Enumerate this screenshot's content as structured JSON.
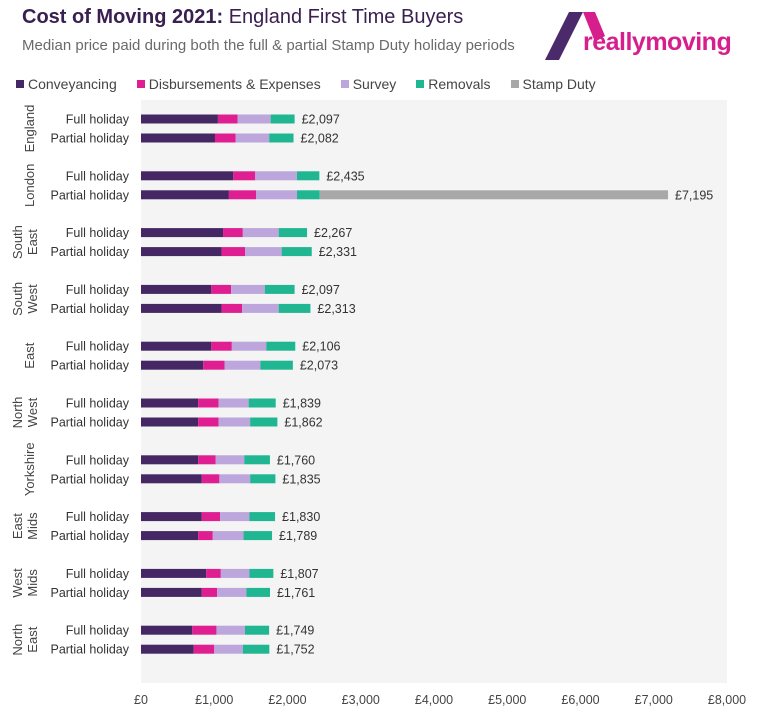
{
  "header": {
    "title_bold": "Cost of Moving 2021:",
    "title_rest": " England First Time Buyers",
    "subtitle": "Median price paid during both the full & partial Stamp Duty holiday periods"
  },
  "logo": {
    "text": "reallymoving",
    "color": "#d61f8c",
    "mark_color": "#4a2a6b"
  },
  "chart_data": {
    "type": "bar",
    "orientation": "horizontal",
    "stacked": true,
    "xlim": [
      0,
      8000
    ],
    "x_ticks": [
      "£0",
      "£1,000",
      "£2,000",
      "£3,000",
      "£4,000",
      "£5,000",
      "£6,000",
      "£7,000",
      "£8,000"
    ],
    "legend_position": "top-left",
    "series": [
      {
        "name": "Conveyancing",
        "color": "#452764"
      },
      {
        "name": "Disbursements & Expenses",
        "color": "#df1f91"
      },
      {
        "name": "Survey",
        "color": "#bca6dc"
      },
      {
        "name": "Removals",
        "color": "#1fb691"
      },
      {
        "name": "Stamp Duty",
        "color": "#a8a8a8"
      }
    ],
    "groups": [
      {
        "region": "England",
        "rows": [
          {
            "label": "Full holiday",
            "total_label": "£2,097",
            "values": [
              1050,
              270,
              450,
              327,
              0
            ]
          },
          {
            "label": "Partial holiday",
            "total_label": "£2,082",
            "values": [
              1010,
              280,
              460,
              332,
              0
            ]
          }
        ]
      },
      {
        "region": "London",
        "rows": [
          {
            "label": "Full holiday",
            "total_label": "£2,435",
            "values": [
              1260,
              300,
              570,
              305,
              0
            ]
          },
          {
            "label": "Partial holiday",
            "total_label": "£7,195",
            "values": [
              1200,
              370,
              560,
              310,
              4755
            ]
          }
        ]
      },
      {
        "region": "South East",
        "rows": [
          {
            "label": "Full holiday",
            "total_label": "£2,267",
            "values": [
              1120,
              270,
              490,
              387,
              0
            ]
          },
          {
            "label": "Partial holiday",
            "total_label": "£2,331",
            "values": [
              1100,
              320,
              500,
              411,
              0
            ]
          }
        ]
      },
      {
        "region": "South West",
        "rows": [
          {
            "label": "Full holiday",
            "total_label": "£2,097",
            "values": [
              960,
              270,
              460,
              407,
              0
            ]
          },
          {
            "label": "Partial holiday",
            "total_label": "£2,313",
            "values": [
              1100,
              280,
              500,
              433,
              0
            ]
          }
        ]
      },
      {
        "region": "East",
        "rows": [
          {
            "label": "Full holiday",
            "total_label": "£2,106",
            "values": [
              960,
              280,
              470,
              396,
              0
            ]
          },
          {
            "label": "Partial holiday",
            "total_label": "£2,073",
            "values": [
              850,
              290,
              490,
              443,
              0
            ]
          }
        ]
      },
      {
        "region": "North West",
        "rows": [
          {
            "label": "Full holiday",
            "total_label": "£1,839",
            "values": [
              780,
              280,
              410,
              369,
              0
            ]
          },
          {
            "label": "Partial holiday",
            "total_label": "£1,862",
            "values": [
              780,
              280,
              430,
              372,
              0
            ]
          }
        ]
      },
      {
        "region": "Yorkshire",
        "rows": [
          {
            "label": "Full holiday",
            "total_label": "£1,760",
            "values": [
              780,
              240,
              390,
              350,
              0
            ]
          },
          {
            "label": "Partial holiday",
            "total_label": "£1,835",
            "values": [
              830,
              240,
              420,
              345,
              0
            ]
          }
        ]
      },
      {
        "region": "East Mids",
        "rows": [
          {
            "label": "Full holiday",
            "total_label": "£1,830",
            "values": [
              830,
              250,
              400,
              350,
              0
            ]
          },
          {
            "label": "Partial holiday",
            "total_label": "£1,789",
            "values": [
              780,
              200,
              420,
              389,
              0
            ]
          }
        ]
      },
      {
        "region": "West Mids",
        "rows": [
          {
            "label": "Full holiday",
            "total_label": "£1,807",
            "values": [
              890,
              200,
              390,
              327,
              0
            ]
          },
          {
            "label": "Partial holiday",
            "total_label": "£1,761",
            "values": [
              830,
              210,
              400,
              321,
              0
            ]
          }
        ]
      },
      {
        "region": "North East",
        "rows": [
          {
            "label": "Full holiday",
            "total_label": "£1,749",
            "values": [
              700,
              330,
              390,
              329,
              0
            ]
          },
          {
            "label": "Partial holiday",
            "total_label": "£1,752",
            "values": [
              720,
              280,
              390,
              362,
              0
            ]
          }
        ]
      }
    ]
  }
}
